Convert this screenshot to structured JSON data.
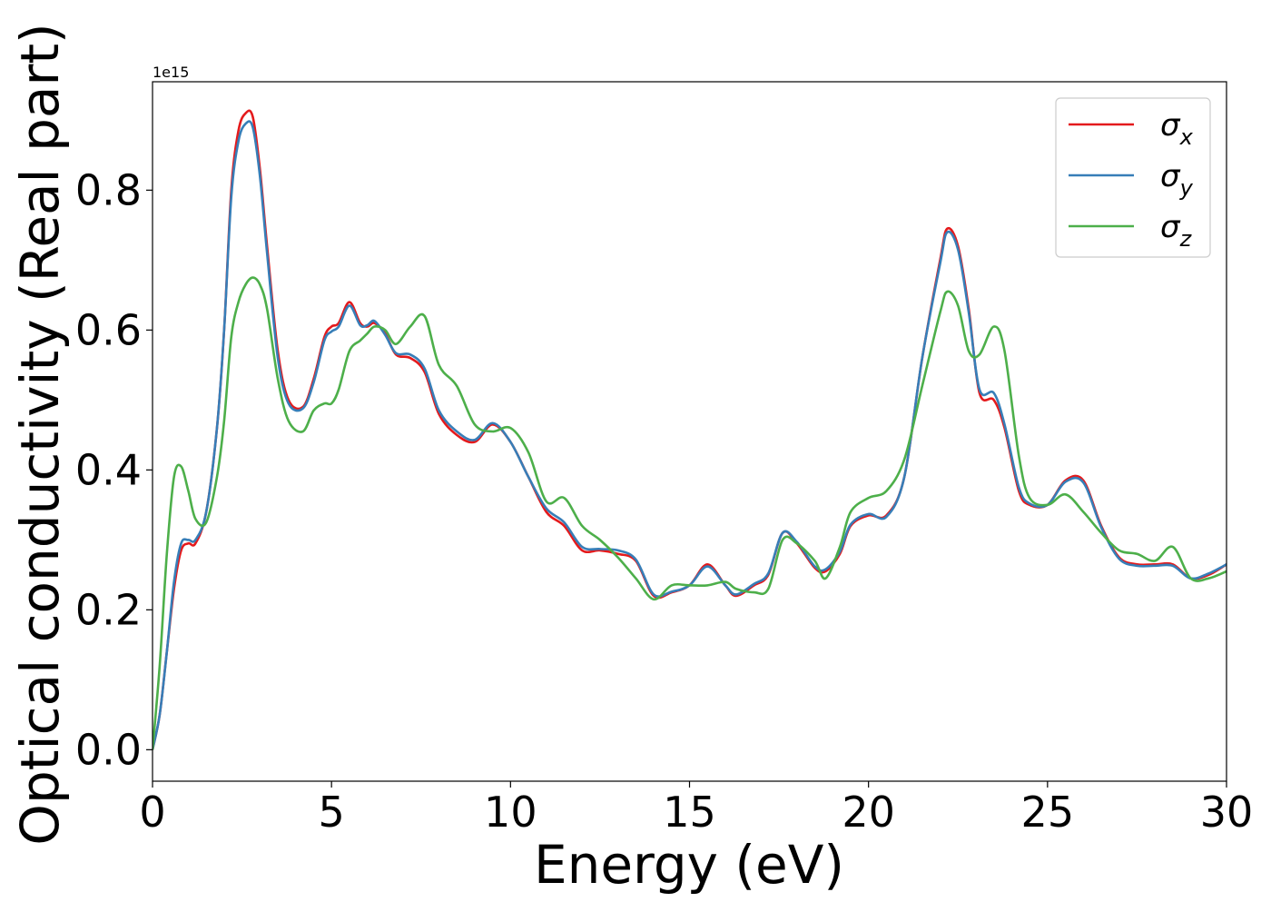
{
  "chart_data": {
    "type": "line",
    "xlabel": "Energy (eV)",
    "ylabel": "Optical conductivity (Real part)",
    "y_offset_label": "1e15",
    "xlim": [
      0,
      30
    ],
    "ylim": [
      -0.045,
      0.955
    ],
    "xticks": [
      {
        "value": 0,
        "label": "0"
      },
      {
        "value": 5,
        "label": "5"
      },
      {
        "value": 10,
        "label": "10"
      },
      {
        "value": 15,
        "label": "15"
      },
      {
        "value": 20,
        "label": "20"
      },
      {
        "value": 25,
        "label": "25"
      },
      {
        "value": 30,
        "label": "30"
      }
    ],
    "yticks": [
      {
        "value": 0.0,
        "label": "0.0"
      },
      {
        "value": 0.2,
        "label": "0.2"
      },
      {
        "value": 0.4,
        "label": "0.4"
      },
      {
        "value": 0.6,
        "label": "0.6"
      },
      {
        "value": 0.8,
        "label": "0.8"
      }
    ],
    "grid": false,
    "legend_position": "top-right",
    "series": [
      {
        "name": "σx",
        "legend_base": "σ",
        "legend_sub": "x",
        "color": "#e41a1c",
        "points": [
          [
            0,
            0
          ],
          [
            0.2,
            0.05
          ],
          [
            0.4,
            0.14
          ],
          [
            0.6,
            0.23
          ],
          [
            0.8,
            0.285
          ],
          [
            1.0,
            0.295
          ],
          [
            1.2,
            0.295
          ],
          [
            1.5,
            0.34
          ],
          [
            1.8,
            0.46
          ],
          [
            2.0,
            0.6
          ],
          [
            2.2,
            0.8
          ],
          [
            2.4,
            0.885
          ],
          [
            2.6,
            0.91
          ],
          [
            2.8,
            0.905
          ],
          [
            3.0,
            0.83
          ],
          [
            3.2,
            0.72
          ],
          [
            3.5,
            0.57
          ],
          [
            3.8,
            0.5
          ],
          [
            4.2,
            0.49
          ],
          [
            4.5,
            0.53
          ],
          [
            4.8,
            0.59
          ],
          [
            5.0,
            0.605
          ],
          [
            5.2,
            0.61
          ],
          [
            5.5,
            0.64
          ],
          [
            5.8,
            0.61
          ],
          [
            6.0,
            0.605
          ],
          [
            6.2,
            0.61
          ],
          [
            6.5,
            0.595
          ],
          [
            6.8,
            0.565
          ],
          [
            7.2,
            0.56
          ],
          [
            7.6,
            0.54
          ],
          [
            8.0,
            0.48
          ],
          [
            8.5,
            0.45
          ],
          [
            9.0,
            0.44
          ],
          [
            9.5,
            0.465
          ],
          [
            10.0,
            0.44
          ],
          [
            10.5,
            0.39
          ],
          [
            11.0,
            0.34
          ],
          [
            11.5,
            0.32
          ],
          [
            12.0,
            0.285
          ],
          [
            12.5,
            0.285
          ],
          [
            13.0,
            0.28
          ],
          [
            13.5,
            0.27
          ],
          [
            14.0,
            0.22
          ],
          [
            14.5,
            0.225
          ],
          [
            15.0,
            0.235
          ],
          [
            15.5,
            0.265
          ],
          [
            16.0,
            0.235
          ],
          [
            16.3,
            0.22
          ],
          [
            16.8,
            0.235
          ],
          [
            17.2,
            0.25
          ],
          [
            17.6,
            0.31
          ],
          [
            18.0,
            0.295
          ],
          [
            18.5,
            0.26
          ],
          [
            18.8,
            0.255
          ],
          [
            19.2,
            0.28
          ],
          [
            19.5,
            0.32
          ],
          [
            20.0,
            0.335
          ],
          [
            20.5,
            0.335
          ],
          [
            21.0,
            0.39
          ],
          [
            21.5,
            0.56
          ],
          [
            22.0,
            0.7
          ],
          [
            22.2,
            0.745
          ],
          [
            22.5,
            0.72
          ],
          [
            22.8,
            0.63
          ],
          [
            23.1,
            0.51
          ],
          [
            23.5,
            0.5
          ],
          [
            23.8,
            0.46
          ],
          [
            24.2,
            0.37
          ],
          [
            24.5,
            0.35
          ],
          [
            25.0,
            0.35
          ],
          [
            25.5,
            0.385
          ],
          [
            26.0,
            0.385
          ],
          [
            26.5,
            0.32
          ],
          [
            27.0,
            0.275
          ],
          [
            27.5,
            0.265
          ],
          [
            28.0,
            0.265
          ],
          [
            28.5,
            0.265
          ],
          [
            29.0,
            0.245
          ],
          [
            29.5,
            0.25
          ],
          [
            30.0,
            0.265
          ]
        ]
      },
      {
        "name": "σy",
        "legend_base": "σ",
        "legend_sub": "y",
        "color": "#377eb8",
        "points": [
          [
            0,
            0
          ],
          [
            0.2,
            0.05
          ],
          [
            0.4,
            0.14
          ],
          [
            0.6,
            0.24
          ],
          [
            0.8,
            0.295
          ],
          [
            1.0,
            0.3
          ],
          [
            1.2,
            0.3
          ],
          [
            1.5,
            0.34
          ],
          [
            1.8,
            0.46
          ],
          [
            2.0,
            0.6
          ],
          [
            2.2,
            0.79
          ],
          [
            2.4,
            0.87
          ],
          [
            2.6,
            0.895
          ],
          [
            2.8,
            0.89
          ],
          [
            3.0,
            0.82
          ],
          [
            3.2,
            0.71
          ],
          [
            3.5,
            0.56
          ],
          [
            3.8,
            0.495
          ],
          [
            4.2,
            0.488
          ],
          [
            4.5,
            0.525
          ],
          [
            4.8,
            0.585
          ],
          [
            5.0,
            0.598
          ],
          [
            5.2,
            0.605
          ],
          [
            5.5,
            0.635
          ],
          [
            5.8,
            0.607
          ],
          [
            6.0,
            0.607
          ],
          [
            6.2,
            0.613
          ],
          [
            6.5,
            0.593
          ],
          [
            6.8,
            0.567
          ],
          [
            7.2,
            0.565
          ],
          [
            7.6,
            0.545
          ],
          [
            8.0,
            0.485
          ],
          [
            8.5,
            0.455
          ],
          [
            9.0,
            0.443
          ],
          [
            9.5,
            0.467
          ],
          [
            10.0,
            0.44
          ],
          [
            10.5,
            0.39
          ],
          [
            11.0,
            0.345
          ],
          [
            11.5,
            0.325
          ],
          [
            12.0,
            0.29
          ],
          [
            12.5,
            0.287
          ],
          [
            13.0,
            0.285
          ],
          [
            13.5,
            0.272
          ],
          [
            14.0,
            0.222
          ],
          [
            14.5,
            0.226
          ],
          [
            15.0,
            0.235
          ],
          [
            15.5,
            0.262
          ],
          [
            16.0,
            0.235
          ],
          [
            16.3,
            0.222
          ],
          [
            16.8,
            0.237
          ],
          [
            17.2,
            0.252
          ],
          [
            17.6,
            0.31
          ],
          [
            18.0,
            0.297
          ],
          [
            18.5,
            0.262
          ],
          [
            18.8,
            0.258
          ],
          [
            19.2,
            0.283
          ],
          [
            19.5,
            0.322
          ],
          [
            20.0,
            0.337
          ],
          [
            20.5,
            0.333
          ],
          [
            21.0,
            0.39
          ],
          [
            21.5,
            0.56
          ],
          [
            22.0,
            0.695
          ],
          [
            22.2,
            0.74
          ],
          [
            22.5,
            0.715
          ],
          [
            22.8,
            0.625
          ],
          [
            23.1,
            0.515
          ],
          [
            23.5,
            0.51
          ],
          [
            23.8,
            0.465
          ],
          [
            24.2,
            0.375
          ],
          [
            24.5,
            0.352
          ],
          [
            25.0,
            0.35
          ],
          [
            25.5,
            0.383
          ],
          [
            26.0,
            0.382
          ],
          [
            26.5,
            0.318
          ],
          [
            27.0,
            0.273
          ],
          [
            27.5,
            0.263
          ],
          [
            28.0,
            0.263
          ],
          [
            28.5,
            0.263
          ],
          [
            29.0,
            0.245
          ],
          [
            29.5,
            0.252
          ],
          [
            30.0,
            0.265
          ]
        ]
      },
      {
        "name": "σz",
        "legend_base": "σ",
        "legend_sub": "z",
        "color": "#4daf4a",
        "points": [
          [
            0,
            0
          ],
          [
            0.2,
            0.12
          ],
          [
            0.4,
            0.28
          ],
          [
            0.6,
            0.39
          ],
          [
            0.8,
            0.405
          ],
          [
            1.0,
            0.37
          ],
          [
            1.2,
            0.33
          ],
          [
            1.5,
            0.325
          ],
          [
            1.8,
            0.39
          ],
          [
            2.0,
            0.47
          ],
          [
            2.2,
            0.59
          ],
          [
            2.4,
            0.64
          ],
          [
            2.6,
            0.665
          ],
          [
            2.8,
            0.675
          ],
          [
            3.0,
            0.665
          ],
          [
            3.2,
            0.63
          ],
          [
            3.5,
            0.53
          ],
          [
            3.8,
            0.47
          ],
          [
            4.2,
            0.455
          ],
          [
            4.5,
            0.485
          ],
          [
            4.8,
            0.495
          ],
          [
            5.0,
            0.495
          ],
          [
            5.2,
            0.515
          ],
          [
            5.5,
            0.57
          ],
          [
            5.8,
            0.585
          ],
          [
            6.0,
            0.595
          ],
          [
            6.2,
            0.605
          ],
          [
            6.5,
            0.6
          ],
          [
            6.8,
            0.58
          ],
          [
            7.2,
            0.605
          ],
          [
            7.6,
            0.62
          ],
          [
            8.0,
            0.55
          ],
          [
            8.5,
            0.52
          ],
          [
            9.0,
            0.465
          ],
          [
            9.5,
            0.455
          ],
          [
            10.0,
            0.46
          ],
          [
            10.5,
            0.425
          ],
          [
            11.0,
            0.355
          ],
          [
            11.5,
            0.36
          ],
          [
            12.0,
            0.32
          ],
          [
            12.5,
            0.3
          ],
          [
            13.0,
            0.275
          ],
          [
            13.5,
            0.245
          ],
          [
            14.0,
            0.215
          ],
          [
            14.5,
            0.235
          ],
          [
            15.0,
            0.235
          ],
          [
            15.5,
            0.235
          ],
          [
            16.0,
            0.24
          ],
          [
            16.3,
            0.23
          ],
          [
            16.8,
            0.225
          ],
          [
            17.2,
            0.23
          ],
          [
            17.6,
            0.3
          ],
          [
            18.0,
            0.295
          ],
          [
            18.5,
            0.27
          ],
          [
            18.8,
            0.245
          ],
          [
            19.2,
            0.29
          ],
          [
            19.5,
            0.34
          ],
          [
            20.0,
            0.36
          ],
          [
            20.5,
            0.37
          ],
          [
            21.0,
            0.415
          ],
          [
            21.5,
            0.52
          ],
          [
            22.0,
            0.625
          ],
          [
            22.2,
            0.655
          ],
          [
            22.5,
            0.635
          ],
          [
            22.8,
            0.57
          ],
          [
            23.1,
            0.565
          ],
          [
            23.5,
            0.605
          ],
          [
            23.8,
            0.57
          ],
          [
            24.2,
            0.42
          ],
          [
            24.5,
            0.36
          ],
          [
            25.0,
            0.35
          ],
          [
            25.5,
            0.365
          ],
          [
            26.0,
            0.34
          ],
          [
            26.5,
            0.31
          ],
          [
            27.0,
            0.285
          ],
          [
            27.5,
            0.28
          ],
          [
            28.0,
            0.27
          ],
          [
            28.5,
            0.29
          ],
          [
            29.0,
            0.245
          ],
          [
            29.5,
            0.245
          ],
          [
            30.0,
            0.255
          ]
        ]
      }
    ]
  }
}
